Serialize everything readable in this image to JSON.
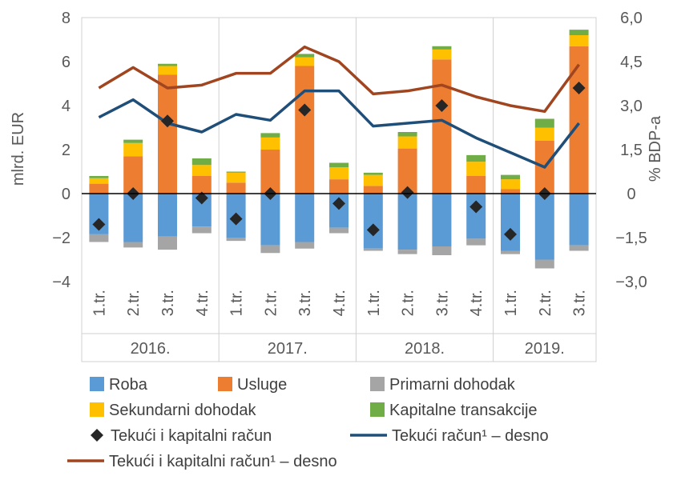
{
  "chart_data": {
    "type": "bar",
    "stacked": true,
    "quarters": [
      "1.tr.",
      "2.tr.",
      "3.tr.",
      "4.tr.",
      "1.tr.",
      "2.tr.",
      "3.tr.",
      "4.tr.",
      "1.tr.",
      "2.tr.",
      "3.tr.",
      "4.tr.",
      "1.tr.",
      "2.tr.",
      "3.tr."
    ],
    "years": [
      {
        "label": "2016.",
        "quarters": 4
      },
      {
        "label": "2017.",
        "quarters": 4
      },
      {
        "label": "2018.",
        "quarters": 4
      },
      {
        "label": "2019.",
        "quarters": 3
      }
    ],
    "ylabel_left": "mlrd. EUR",
    "ylabel_right": "% BDP-a",
    "ylim_left": [
      -4,
      8
    ],
    "ylim_right": [
      -3.0,
      6.0
    ],
    "yticks_left": [
      "8",
      "6",
      "4",
      "2",
      "0",
      "−2",
      "−4"
    ],
    "yticks_right": [
      "6,0",
      "4,5",
      "3,0",
      "1,5",
      "0",
      "−1,5",
      "−3,0"
    ],
    "grid": "vertical year separators",
    "legend_position": "bottom",
    "series": [
      {
        "name": "Roba",
        "kind": "bar",
        "color": "#5b9bd5",
        "values": [
          -1.85,
          -2.2,
          -1.95,
          -1.5,
          -2.0,
          -2.35,
          -2.2,
          -1.55,
          -2.5,
          -2.55,
          -2.4,
          -2.05,
          -2.6,
          -3.0,
          -2.35
        ]
      },
      {
        "name": "Usluge",
        "kind": "bar",
        "color": "#ed7d31",
        "values": [
          0.45,
          1.7,
          5.4,
          0.8,
          0.5,
          2.0,
          5.8,
          0.65,
          0.35,
          2.05,
          6.1,
          0.8,
          0.2,
          2.4,
          6.7
        ]
      },
      {
        "name": "Primarni dohodak",
        "kind": "bar",
        "color": "#a5a5a5",
        "values": [
          -0.35,
          -0.25,
          -0.6,
          -0.3,
          -0.15,
          -0.35,
          -0.3,
          -0.25,
          -0.1,
          -0.2,
          -0.4,
          -0.3,
          -0.15,
          -0.4,
          -0.25
        ]
      },
      {
        "name": "Sekundarni dohodak",
        "kind": "bar",
        "color": "#ffc000",
        "values": [
          0.25,
          0.6,
          0.4,
          0.5,
          0.45,
          0.55,
          0.4,
          0.55,
          0.5,
          0.55,
          0.45,
          0.65,
          0.45,
          0.6,
          0.5
        ]
      },
      {
        "name": "Kapitalne transakcije",
        "kind": "bar",
        "color": "#70ad47",
        "values": [
          0.1,
          0.15,
          0.1,
          0.3,
          0.05,
          0.2,
          0.15,
          0.2,
          0.1,
          0.2,
          0.15,
          0.3,
          0.2,
          0.4,
          0.25
        ]
      },
      {
        "name": "Tekući i kapitalni račun",
        "kind": "marker",
        "color": "#262626",
        "values": [
          -1.4,
          0.0,
          3.3,
          -0.2,
          -1.15,
          0.0,
          3.8,
          -0.45,
          -1.65,
          0.05,
          4.0,
          -0.6,
          -1.85,
          0.0,
          4.8
        ]
      },
      {
        "name": "Tekući račun¹ – desno",
        "kind": "line",
        "axis": "right",
        "color": "#1f4e79",
        "values": [
          2.6,
          3.2,
          2.4,
          2.1,
          2.7,
          2.5,
          3.5,
          3.5,
          2.3,
          2.4,
          2.5,
          1.9,
          1.4,
          0.9,
          2.4
        ]
      },
      {
        "name": "Tekući i kapitalni račun¹ – desno",
        "kind": "line",
        "axis": "right",
        "color": "#a0451f",
        "values": [
          3.6,
          4.3,
          3.6,
          3.7,
          4.1,
          4.1,
          5.0,
          4.5,
          3.4,
          3.5,
          3.7,
          3.3,
          3.0,
          2.8,
          4.4
        ]
      }
    ]
  }
}
